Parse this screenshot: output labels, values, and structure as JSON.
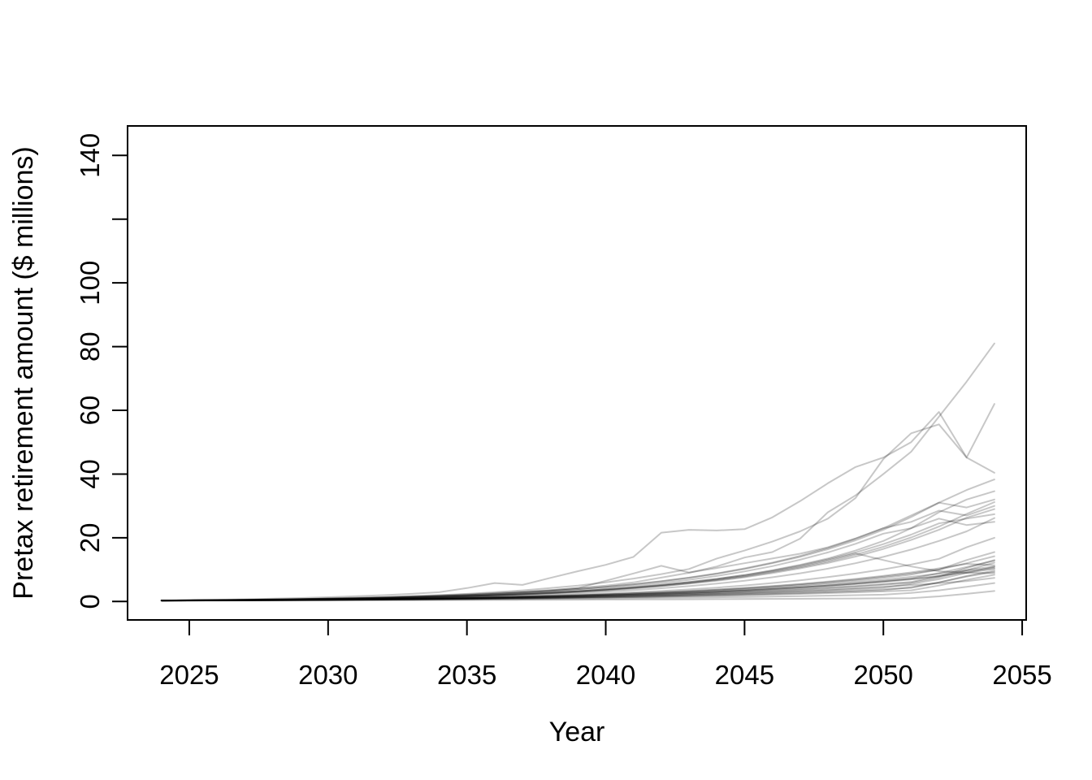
{
  "figure": {
    "background": "#ffffff"
  },
  "chart_data": {
    "type": "line",
    "title": "",
    "xlabel": "Year",
    "ylabel": "Pretax retirement amount ($ millions)",
    "grid": false,
    "legend": "none",
    "line_color": "rgba(0,0,0,0.22)",
    "axis_color": "#000000",
    "xlim": [
      2022.8,
      2055.1
    ],
    "ylim": [
      -5.8,
      149.3
    ],
    "x_axis": {
      "ticks": [
        2025,
        2030,
        2035,
        2040,
        2045,
        2050,
        2055
      ],
      "labels": [
        "2025",
        "2030",
        "2035",
        "2040",
        "2045",
        "2050",
        "2055"
      ]
    },
    "y_axis": {
      "ticks": [
        0,
        20,
        40,
        60,
        80,
        100,
        120,
        140
      ],
      "labels": [
        "0",
        "20",
        "40",
        "60",
        "80",
        "100",
        "",
        "140"
      ]
    },
    "x": [
      2024,
      2025,
      2026,
      2027,
      2028,
      2029,
      2030,
      2031,
      2032,
      2033,
      2034,
      2035,
      2036,
      2037,
      2038,
      2039,
      2040,
      2041,
      2042,
      2043,
      2044,
      2045,
      2046,
      2047,
      2048,
      2049,
      2050,
      2051,
      2052,
      2053,
      2054
    ],
    "series": [
      [
        0.3,
        0.38,
        0.45,
        0.55,
        0.65,
        0.75,
        0.9,
        1.0,
        1.2,
        1.4,
        1.7,
        2.0,
        2.4,
        2.9,
        3.5,
        4.2,
        5.0,
        6.0,
        7.5,
        9.0,
        11.0,
        13.8,
        15.5,
        19.7,
        28.0,
        33.3,
        40.0,
        47.0,
        58.0,
        69.0,
        81.0
      ],
      [
        0.3,
        0.42,
        0.55,
        0.7,
        0.9,
        1.1,
        1.35,
        1.65,
        2.0,
        2.4,
        2.9,
        4.2,
        5.8,
        5.2,
        7.4,
        9.5,
        11.5,
        14.0,
        21.6,
        22.5,
        22.3,
        22.7,
        26.4,
        31.5,
        37.1,
        42.2,
        45.2,
        50.0,
        59.5,
        45.2,
        62.0
      ],
      [
        0.3,
        0.36,
        0.44,
        0.54,
        0.65,
        0.8,
        0.95,
        1.15,
        1.4,
        1.7,
        2.0,
        2.4,
        2.9,
        3.5,
        4.2,
        5.0,
        6.0,
        7.2,
        8.6,
        10.2,
        13.5,
        16.0,
        18.8,
        22.0,
        26.0,
        32.5,
        44.7,
        52.8,
        55.6,
        45.2,
        40.4
      ],
      [
        0.3,
        0.35,
        0.42,
        0.5,
        0.6,
        0.72,
        0.86,
        1.0,
        1.2,
        1.45,
        1.7,
        2.0,
        2.4,
        2.8,
        3.3,
        3.9,
        4.6,
        5.4,
        6.4,
        7.5,
        8.8,
        10.4,
        12.2,
        14.3,
        16.8,
        19.7,
        23.0,
        27.0,
        31.0,
        35.0,
        38.3
      ],
      [
        0.3,
        0.34,
        0.4,
        0.47,
        0.55,
        0.65,
        0.77,
        0.9,
        1.05,
        1.25,
        1.45,
        1.7,
        2.0,
        2.35,
        2.75,
        3.2,
        3.8,
        4.4,
        5.2,
        6.1,
        7.1,
        8.3,
        9.8,
        11.5,
        13.5,
        16.0,
        19.0,
        23.0,
        28.0,
        32.0,
        34.6
      ],
      [
        0.3,
        0.36,
        0.43,
        0.52,
        0.62,
        0.74,
        0.88,
        1.05,
        1.25,
        1.5,
        1.75,
        2.05,
        2.4,
        2.85,
        3.35,
        3.9,
        4.6,
        5.4,
        6.3,
        7.4,
        8.7,
        10.2,
        12.0,
        14.0,
        16.4,
        19.2,
        22.5,
        26.5,
        31.0,
        29.5,
        32.0
      ],
      [
        0.3,
        0.33,
        0.38,
        0.44,
        0.52,
        0.61,
        0.72,
        0.85,
        1.0,
        1.2,
        1.4,
        1.65,
        1.9,
        2.25,
        2.6,
        3.05,
        3.6,
        4.2,
        4.9,
        5.7,
        6.7,
        7.8,
        9.2,
        10.7,
        12.5,
        14.7,
        17.2,
        20.1,
        23.5,
        27.5,
        31.2
      ],
      [
        0.3,
        0.37,
        0.45,
        0.55,
        0.66,
        0.8,
        0.96,
        1.15,
        1.35,
        1.6,
        1.9,
        2.25,
        2.65,
        3.1,
        3.6,
        4.2,
        6.5,
        8.8,
        11.2,
        9.1,
        10.5,
        12.0,
        13.5,
        15.0,
        17.0,
        19.8,
        23.0,
        25.0,
        28.5,
        27.0,
        30.0
      ],
      [
        0.3,
        0.34,
        0.39,
        0.45,
        0.53,
        0.62,
        0.73,
        0.86,
        1.0,
        1.18,
        1.38,
        1.6,
        1.88,
        2.2,
        2.55,
        3.0,
        3.5,
        4.1,
        4.8,
        5.6,
        6.5,
        7.6,
        8.9,
        10.4,
        12.1,
        14.1,
        16.5,
        19.3,
        22.5,
        26.3,
        29.0
      ],
      [
        0.3,
        0.35,
        0.41,
        0.48,
        0.57,
        0.67,
        0.78,
        0.92,
        1.08,
        1.26,
        1.48,
        1.73,
        2.0,
        2.4,
        2.8,
        3.25,
        3.8,
        4.45,
        5.2,
        6.1,
        7.1,
        8.3,
        9.7,
        11.3,
        13.2,
        15.4,
        18.0,
        21.0,
        24.5,
        26.0,
        27.4
      ],
      [
        0.3,
        0.33,
        0.37,
        0.43,
        0.5,
        0.58,
        0.67,
        0.78,
        0.91,
        1.06,
        1.23,
        1.43,
        1.67,
        1.94,
        2.26,
        2.63,
        3.06,
        3.56,
        4.15,
        4.83,
        5.62,
        6.54,
        7.61,
        8.86,
        10.3,
        12.0,
        14.0,
        16.3,
        19.0,
        22.0,
        26.2
      ],
      [
        0.3,
        0.36,
        0.42,
        0.5,
        0.59,
        0.7,
        0.82,
        0.97,
        1.14,
        1.34,
        1.58,
        1.86,
        2.19,
        2.57,
        3.03,
        3.56,
        4.19,
        4.93,
        5.8,
        6.82,
        8.02,
        9.44,
        11.1,
        13.1,
        15.4,
        18.1,
        21.3,
        23.0,
        26.0,
        24.0,
        25.0
      ],
      [
        0.3,
        0.32,
        0.36,
        0.41,
        0.47,
        0.54,
        0.62,
        0.71,
        0.82,
        0.94,
        1.08,
        1.24,
        1.43,
        1.64,
        1.89,
        2.17,
        2.5,
        2.87,
        3.3,
        3.8,
        4.37,
        5.02,
        5.78,
        6.64,
        7.64,
        8.78,
        10.1,
        11.6,
        13.4,
        17.0,
        20.0
      ],
      [
        0.3,
        0.33,
        0.37,
        0.42,
        0.48,
        0.54,
        0.61,
        0.69,
        0.78,
        0.89,
        1.0,
        1.14,
        1.29,
        1.46,
        1.66,
        1.88,
        2.13,
        2.41,
        2.73,
        3.1,
        3.51,
        3.98,
        4.51,
        5.11,
        5.79,
        6.56,
        7.44,
        8.43,
        10.0,
        13.0,
        15.5
      ],
      [
        0.3,
        0.34,
        0.38,
        0.43,
        0.49,
        0.56,
        0.63,
        0.72,
        0.81,
        0.92,
        1.05,
        1.19,
        1.35,
        1.53,
        1.73,
        1.96,
        2.22,
        2.52,
        2.86,
        3.24,
        3.67,
        4.16,
        4.72,
        5.35,
        6.06,
        6.87,
        7.79,
        8.83,
        10.0,
        12.0,
        14.2
      ],
      [
        0.3,
        0.32,
        0.35,
        0.39,
        0.44,
        0.5,
        0.56,
        0.63,
        0.71,
        0.8,
        0.9,
        1.02,
        1.15,
        1.29,
        1.46,
        1.64,
        1.85,
        2.09,
        2.35,
        2.65,
        2.99,
        3.37,
        3.8,
        4.29,
        4.83,
        5.45,
        6.15,
        6.93,
        7.82,
        10.5,
        13.0
      ],
      [
        0.3,
        0.33,
        0.36,
        0.4,
        0.45,
        0.51,
        0.57,
        0.64,
        0.72,
        0.81,
        0.92,
        1.04,
        1.17,
        1.32,
        1.49,
        1.68,
        1.9,
        2.14,
        2.42,
        2.73,
        3.08,
        3.48,
        3.93,
        4.43,
        5.0,
        5.65,
        6.38,
        7.2,
        8.9,
        10.8,
        12.8
      ],
      [
        0.3,
        0.32,
        0.35,
        0.38,
        0.42,
        0.47,
        0.52,
        0.58,
        0.65,
        0.73,
        0.82,
        0.92,
        1.03,
        1.16,
        1.3,
        1.46,
        1.64,
        1.84,
        2.07,
        2.32,
        2.61,
        2.93,
        3.29,
        3.7,
        4.15,
        4.66,
        5.24,
        5.89,
        7.5,
        9.8,
        12.2
      ],
      [
        0.3,
        0.34,
        0.39,
        0.44,
        0.5,
        0.57,
        0.64,
        0.73,
        0.83,
        0.94,
        1.07,
        1.21,
        1.37,
        1.56,
        1.77,
        2.0,
        2.27,
        2.58,
        2.93,
        3.32,
        3.77,
        4.28,
        4.85,
        5.51,
        6.25,
        7.09,
        8.05,
        9.13,
        10.4,
        11.8,
        11.4
      ],
      [
        0.3,
        0.31,
        0.34,
        0.37,
        0.41,
        0.45,
        0.5,
        0.56,
        0.62,
        0.69,
        0.77,
        0.86,
        0.96,
        1.07,
        1.19,
        1.33,
        1.48,
        1.65,
        1.84,
        2.05,
        2.29,
        2.55,
        2.84,
        3.17,
        3.53,
        3.94,
        4.39,
        5.5,
        7.0,
        9.0,
        10.9
      ],
      [
        0.3,
        0.33,
        0.36,
        0.41,
        0.46,
        0.52,
        0.58,
        0.66,
        0.74,
        0.83,
        0.94,
        1.06,
        1.19,
        1.34,
        1.51,
        1.7,
        1.92,
        2.16,
        2.43,
        2.74,
        3.09,
        3.48,
        3.92,
        4.42,
        4.98,
        5.61,
        6.32,
        7.12,
        8.02,
        9.04,
        10.2
      ],
      [
        0.3,
        0.32,
        0.34,
        0.37,
        0.4,
        0.44,
        0.48,
        0.53,
        0.58,
        0.64,
        0.71,
        0.78,
        0.86,
        0.95,
        1.05,
        1.16,
        1.28,
        1.42,
        1.57,
        1.74,
        1.92,
        2.13,
        2.35,
        2.6,
        2.88,
        3.19,
        3.53,
        4.5,
        6.0,
        8.0,
        9.7
      ],
      [
        0.3,
        0.35,
        0.41,
        0.48,
        0.56,
        0.66,
        0.77,
        0.9,
        1.05,
        1.23,
        1.44,
        1.68,
        1.97,
        2.3,
        2.69,
        3.15,
        3.68,
        4.31,
        5.04,
        5.9,
        6.9,
        8.07,
        9.44,
        11.0,
        12.9,
        15.1,
        13.0,
        11.0,
        9.5,
        9.0,
        8.9
      ],
      [
        0.3,
        0.31,
        0.33,
        0.36,
        0.39,
        0.43,
        0.47,
        0.52,
        0.57,
        0.63,
        0.69,
        0.76,
        0.84,
        0.92,
        1.01,
        1.11,
        1.22,
        1.34,
        1.47,
        1.62,
        1.78,
        1.96,
        2.16,
        2.38,
        2.62,
        2.88,
        3.17,
        3.49,
        5.0,
        6.8,
        8.4
      ],
      [
        0.3,
        0.32,
        0.35,
        0.39,
        0.43,
        0.48,
        0.53,
        0.59,
        0.66,
        0.74,
        0.82,
        0.91,
        1.01,
        1.13,
        1.26,
        1.4,
        1.56,
        1.74,
        1.94,
        2.16,
        2.41,
        2.69,
        3.0,
        3.34,
        3.72,
        4.15,
        4.63,
        5.16,
        5.75,
        6.41,
        7.4
      ],
      [
        0.3,
        0.31,
        0.33,
        0.35,
        0.38,
        0.41,
        0.44,
        0.48,
        0.52,
        0.56,
        0.61,
        0.66,
        0.71,
        0.77,
        0.83,
        0.9,
        0.97,
        1.05,
        1.14,
        1.23,
        1.33,
        1.44,
        1.56,
        1.69,
        1.83,
        1.98,
        2.14,
        2.7,
        3.5,
        4.6,
        5.8
      ],
      [
        0.3,
        0.3,
        0.31,
        0.32,
        0.33,
        0.35,
        0.36,
        0.38,
        0.4,
        0.42,
        0.44,
        0.46,
        0.49,
        0.51,
        0.54,
        0.57,
        0.6,
        0.63,
        0.66,
        0.7,
        0.73,
        0.77,
        0.81,
        0.85,
        0.9,
        0.94,
        0.99,
        1.04,
        1.6,
        2.4,
        3.3
      ],
      [
        0.3,
        0.33,
        0.37,
        0.42,
        0.47,
        0.53,
        0.6,
        0.68,
        0.77,
        0.87,
        0.98,
        1.11,
        1.25,
        1.41,
        1.59,
        1.8,
        2.03,
        2.29,
        2.59,
        2.92,
        3.3,
        3.73,
        4.21,
        4.75,
        5.37,
        6.06,
        6.84,
        7.73,
        8.73,
        9.86,
        11.0
      ],
      [
        0.3,
        0.32,
        0.36,
        0.4,
        0.45,
        0.5,
        0.56,
        0.63,
        0.7,
        0.79,
        0.88,
        0.99,
        1.11,
        1.24,
        1.39,
        1.56,
        1.75,
        1.96,
        2.19,
        2.46,
        2.75,
        3.09,
        3.46,
        3.88,
        4.35,
        4.87,
        5.46,
        6.12,
        8.0,
        9.5,
        10.5
      ],
      [
        0.3,
        0.31,
        0.34,
        0.38,
        0.42,
        0.46,
        0.51,
        0.57,
        0.63,
        0.7,
        0.77,
        0.85,
        0.94,
        1.04,
        1.15,
        1.28,
        1.41,
        1.56,
        1.73,
        1.91,
        2.11,
        2.34,
        2.59,
        2.86,
        3.16,
        3.5,
        3.87,
        4.28,
        6.0,
        7.8,
        9.3
      ]
    ]
  }
}
